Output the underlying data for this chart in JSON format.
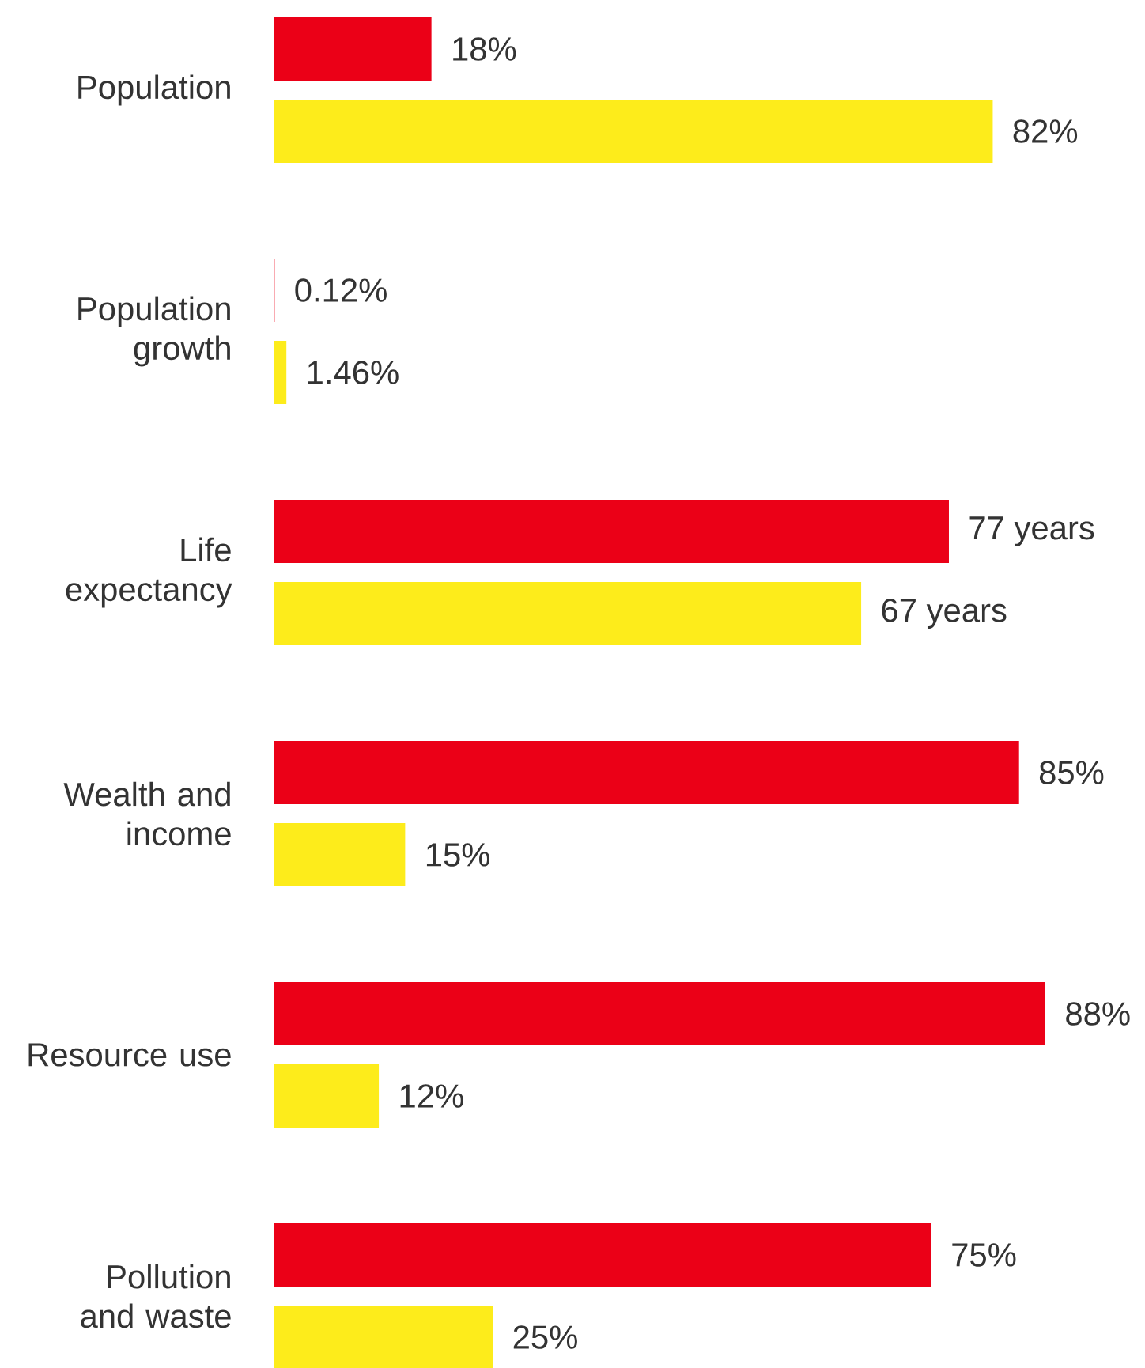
{
  "chart_data": {
    "type": "bar",
    "orientation": "horizontal",
    "xlim": [
      0,
      88
    ],
    "tick_labels": "y",
    "categories": [
      "Population",
      "Population growth",
      "Life expectancy",
      "Wealth and income",
      "Resource use",
      "Pollution and waste"
    ],
    "series": [
      {
        "color": "#eb0017",
        "values": [
          18,
          0.12,
          77,
          85,
          88,
          75
        ],
        "value_labels": [
          "18%",
          "0.12%",
          "77 years",
          "85%",
          "88%",
          "75%"
        ]
      },
      {
        "color": "#fdec1b",
        "values": [
          82,
          1.46,
          67,
          15,
          12,
          25
        ],
        "value_labels": [
          "82%",
          "1.46%",
          "67 years",
          "15%",
          "12%",
          "25%"
        ]
      }
    ]
  }
}
